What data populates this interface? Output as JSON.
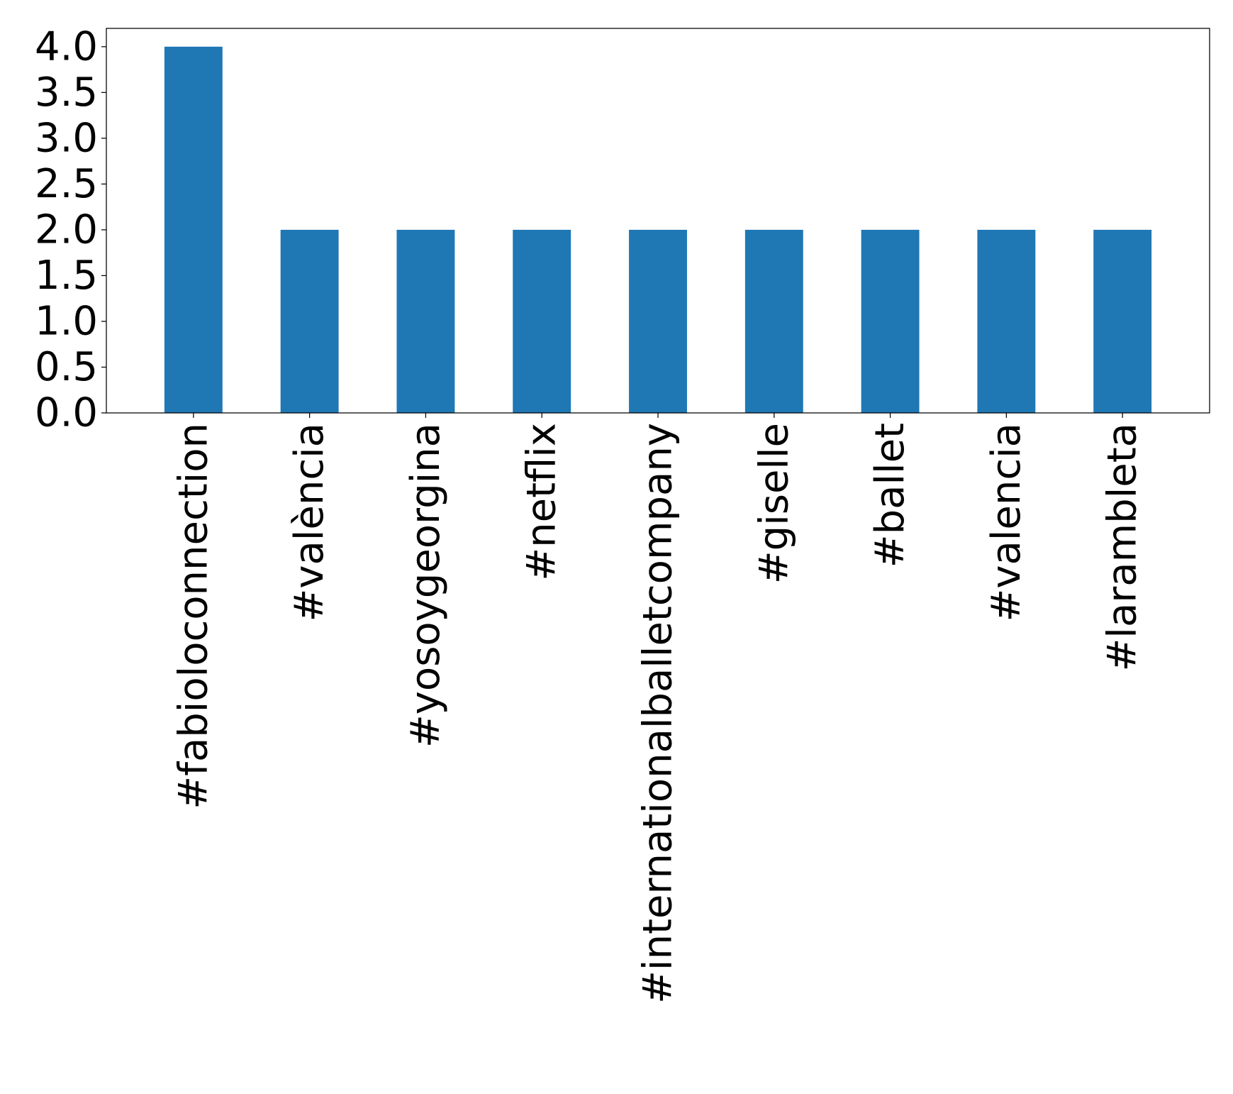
{
  "chart_data": {
    "type": "bar",
    "title": "",
    "xlabel": "",
    "ylabel": "",
    "categories": [
      "#fabioloconnection",
      "#valència",
      "#yosoygeorgina",
      "#netflix",
      "#internationalballetcompany",
      "#giselle",
      "#ballet",
      "#valencia",
      "#larambleta"
    ],
    "values": [
      4,
      2,
      2,
      2,
      2,
      2,
      2,
      2,
      2
    ],
    "ylim": [
      0,
      4.2
    ],
    "yticks": [
      "0.0",
      "0.5",
      "1.0",
      "1.5",
      "2.0",
      "2.5",
      "3.0",
      "3.5",
      "4.0"
    ],
    "bar_color": "#1f77b4",
    "grid": false,
    "legend": "none"
  }
}
